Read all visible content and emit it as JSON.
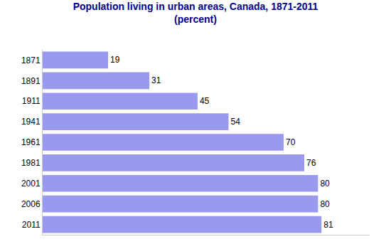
{
  "chart_data": {
    "type": "bar",
    "orientation": "horizontal",
    "title": "Population living in urban areas, Canada, 1871-2011",
    "subtitle": "(percent)",
    "categories": [
      "1871",
      "1891",
      "1911",
      "1941",
      "1961",
      "1981",
      "2001",
      "2006",
      "2011"
    ],
    "values": [
      19,
      31,
      45,
      54,
      70,
      76,
      80,
      80,
      81
    ],
    "color": "#9999ee",
    "xlim": [
      0,
      95
    ],
    "grid": false,
    "data_labels": true,
    "tick_labels": "y"
  }
}
